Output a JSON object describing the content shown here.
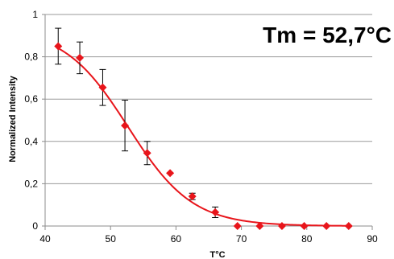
{
  "chart_data": {
    "type": "scatter",
    "title": "",
    "xlabel": "T°C",
    "ylabel": "Normalized Intensity",
    "annotation": "Tm = 52,7°C",
    "xlim": [
      40,
      90
    ],
    "ylim": [
      0,
      1
    ],
    "x_ticks": [
      "40",
      "50",
      "60",
      "70",
      "80",
      "90"
    ],
    "x_tick_values": [
      40,
      50,
      60,
      70,
      80,
      90
    ],
    "y_ticks": [
      "0",
      "0,2",
      "0,4",
      "0,6",
      "0,8",
      "1"
    ],
    "y_tick_values": [
      0,
      0.2,
      0.4,
      0.6,
      0.8,
      1
    ],
    "grid": "horizontal",
    "colors": {
      "series": "#e8151b",
      "grid": "#9a9a9a",
      "axis": "#8c8c8c",
      "error": "#000000"
    },
    "series": [
      {
        "marker": "diamond",
        "x": [
          42,
          45.3,
          48.8,
          52.2,
          55.6,
          59.1,
          62.5,
          66.0,
          69.4,
          72.8,
          76.2,
          79.6,
          83.0,
          86.4
        ],
        "y": [
          0.85,
          0.795,
          0.655,
          0.475,
          0.345,
          0.25,
          0.14,
          0.065,
          0.0,
          0.0,
          0.0,
          0.0,
          0.0,
          0.0
        ],
        "error": [
          0.085,
          0.075,
          0.085,
          0.12,
          0.055,
          0.0,
          0.015,
          0.025,
          0.0,
          0.0,
          0.0,
          0.0,
          0.0,
          0.0
        ]
      }
    ],
    "fit": {
      "type": "sigmoid",
      "tm": 52.7,
      "top": 0.935,
      "slope": 4.9
    }
  }
}
